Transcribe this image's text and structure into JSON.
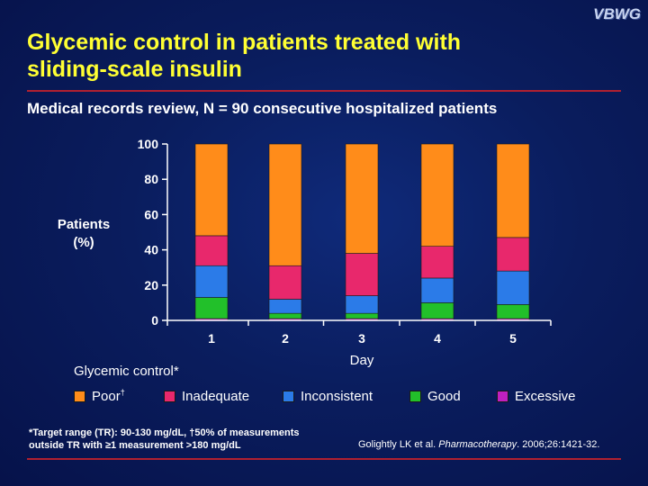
{
  "header": {
    "logo": "VBWG",
    "title_line1": "Glycemic control in patients treated with",
    "title_line2": "sliding-scale insulin",
    "subtitle": "Medical records review, N = 90 consecutive hospitalized patients"
  },
  "colors": {
    "title": "#ffff33",
    "rule": "#b02030",
    "poor": "#ff8c1a",
    "inadequate": "#e8286c",
    "inconsistent": "#2b7be8",
    "good": "#22c02a",
    "excessive": "#c020c0"
  },
  "legend": {
    "heading": "Glycemic control*",
    "items": [
      {
        "label": "Poor",
        "sup": "†",
        "color": "#ff8c1a"
      },
      {
        "label": "Inadequate",
        "sup": "",
        "color": "#e8286c"
      },
      {
        "label": "Inconsistent",
        "sup": "",
        "color": "#2b7be8"
      },
      {
        "label": "Good",
        "sup": "",
        "color": "#22c02a"
      },
      {
        "label": "Excessive",
        "sup": "",
        "color": "#c020c0"
      }
    ]
  },
  "footer": {
    "footnote_line1": "*Target range (TR): 90-130 mg/dL, †50% of measurements",
    "footnote_line2": "outside TR with ≥1 measurement >180 mg/dL",
    "citation_authors": "Golightly LK et al. ",
    "citation_journal": "Pharmacotherapy",
    "citation_rest": ". 2006;26:1421-32."
  },
  "chart_data": {
    "type": "bar",
    "stacked": true,
    "title": "",
    "xlabel": "Day",
    "ylabel": "Patients (%)",
    "ylim": [
      0,
      100
    ],
    "yticks": [
      0,
      20,
      40,
      60,
      80,
      100
    ],
    "categories": [
      "1",
      "2",
      "3",
      "4",
      "5"
    ],
    "series": [
      {
        "name": "Excessive",
        "color": "#c020c0",
        "values": [
          1,
          1,
          1,
          1,
          1
        ]
      },
      {
        "name": "Good",
        "color": "#22c02a",
        "values": [
          12,
          3,
          3,
          9,
          8
        ]
      },
      {
        "name": "Inconsistent",
        "color": "#2b7be8",
        "values": [
          18,
          8,
          10,
          14,
          19
        ]
      },
      {
        "name": "Inadequate",
        "color": "#e8286c",
        "values": [
          17,
          19,
          24,
          18,
          19
        ]
      },
      {
        "name": "Poor",
        "color": "#ff8c1a",
        "values": [
          52,
          69,
          62,
          58,
          53
        ]
      }
    ],
    "legend_position": "bottom",
    "grid": false
  }
}
